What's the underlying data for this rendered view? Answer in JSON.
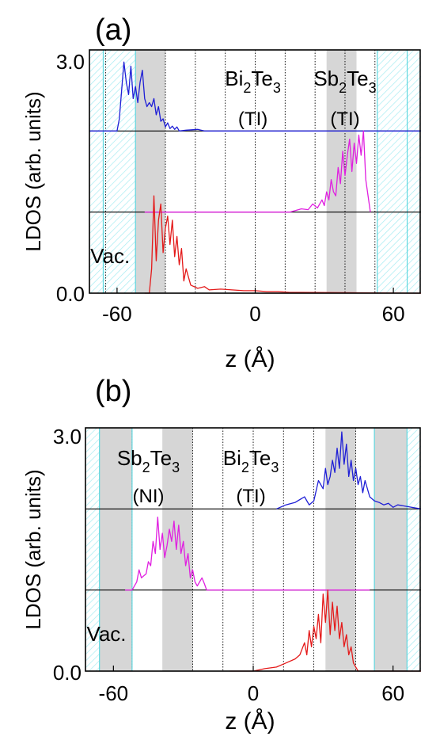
{
  "colors": {
    "top_curve": "#1f1fd6",
    "middle_curve": "#e020e0",
    "bottom_curve": "#e41a1a",
    "quintuple_layer_shade": "#d6d6d6",
    "vacuum_hatch": "#a6ecf2",
    "vacuum_boundary": "#5fd7df",
    "qlayer_divider": "#000000"
  },
  "chart_data": [
    {
      "type": "line",
      "panel_label": "(a)",
      "xlabel": "z (Å)",
      "ylabel": "LDOS (arb. units)",
      "xlim": [
        -72,
        72
      ],
      "ylim": [
        0,
        3.0
      ],
      "x_ticks": [
        -60,
        0,
        60
      ],
      "x_tick_labels": [
        "-60",
        "0",
        "60"
      ],
      "y_tick_labels": {
        "top": "3.0",
        "bottom": "0.0"
      },
      "offsets": [
        2.0,
        1.0,
        0.0
      ],
      "vacuum_label": "Vac.",
      "vacuum_regions": [
        [
          -72,
          -52
        ],
        [
          53,
          72
        ]
      ],
      "vacuum_lines": [
        -66,
        -52,
        53,
        66
      ],
      "shaded_regions": [
        [
          -52,
          -39
        ],
        [
          31,
          44
        ]
      ],
      "dotted_lines": [
        -65,
        -39,
        -26,
        -13,
        0,
        13,
        26,
        39,
        52
      ],
      "region_labels": [
        {
          "base": "Bi",
          "sub1": "2",
          "mid": "Te",
          "sub2": "3",
          "phase": "(TI)",
          "x": -1
        },
        {
          "base": "Sb",
          "sub1": "2",
          "mid": "Te",
          "sub2": "3",
          "phase": "(TI)",
          "x": 39
        }
      ],
      "series": [
        {
          "color_key": "top_curve",
          "baseline": 2.0,
          "x": [
            -72,
            -60,
            -59,
            -58,
            -57,
            -56,
            -55,
            -54,
            -53,
            -52,
            -51,
            -50,
            -49,
            -48,
            -47,
            -46,
            -45,
            -44,
            -43,
            -42,
            -41,
            -40,
            -39,
            -38,
            -37,
            -36,
            -35,
            -34,
            -33,
            -30,
            -25,
            -22,
            -20,
            72
          ],
          "y": [
            2.0,
            2.0,
            2.15,
            2.5,
            2.85,
            2.6,
            2.45,
            2.8,
            2.4,
            2.55,
            2.35,
            2.6,
            2.75,
            2.4,
            2.3,
            2.35,
            2.3,
            2.4,
            2.2,
            2.3,
            2.12,
            2.15,
            2.05,
            2.1,
            2.03,
            2.06,
            2.02,
            2.05,
            2.0,
            2.01,
            2.02,
            2.0,
            2.0,
            2.0
          ]
        },
        {
          "color_key": "middle_curve",
          "baseline": 1.0,
          "x": [
            -48,
            15,
            20,
            23,
            25,
            27,
            29,
            30,
            31,
            32,
            33,
            34,
            35,
            36,
            37,
            38,
            39,
            40,
            41,
            42,
            43,
            44,
            45,
            46,
            47,
            48,
            50
          ],
          "y": [
            1.0,
            1.0,
            1.04,
            1.03,
            1.1,
            1.05,
            1.15,
            1.08,
            1.25,
            1.15,
            1.4,
            1.25,
            1.2,
            1.55,
            1.35,
            1.75,
            1.45,
            1.7,
            1.9,
            1.5,
            1.85,
            1.6,
            1.95,
            1.7,
            2.0,
            1.4,
            1.0
          ]
        },
        {
          "color_key": "bottom_curve",
          "baseline": 0.0,
          "x": [
            -48,
            -46,
            -45,
            -44,
            -43,
            -42,
            -41,
            -40,
            -39,
            -38,
            -37,
            -36,
            -35,
            -34,
            -33,
            -32,
            -31,
            -30,
            -28,
            -25,
            -22,
            -20,
            -15,
            -10,
            -5,
            0,
            5,
            10,
            15,
            20,
            72
          ],
          "y": [
            0.0,
            0.0,
            0.3,
            1.2,
            0.4,
            0.9,
            1.1,
            0.5,
            0.8,
            0.95,
            0.6,
            0.9,
            0.45,
            0.7,
            0.35,
            0.55,
            0.15,
            0.3,
            0.1,
            0.06,
            0.08,
            0.04,
            0.05,
            0.04,
            0.03,
            0.03,
            0.02,
            0.02,
            0.01,
            0.01,
            0.0
          ]
        }
      ]
    },
    {
      "type": "line",
      "panel_label": "(b)",
      "xlabel": "z (Å)",
      "ylabel": "LDOS (arb. units)",
      "xlim": [
        -72,
        72
      ],
      "ylim": [
        0,
        3.0
      ],
      "x_ticks": [
        -60,
        0,
        60
      ],
      "x_tick_labels": [
        "-60",
        "0",
        "60"
      ],
      "y_tick_labels": {
        "top": "3.0",
        "bottom": "0.0"
      },
      "offsets": [
        2.0,
        1.0,
        0.0
      ],
      "vacuum_label": "Vac.",
      "vacuum_regions": [
        [
          -72,
          -52
        ],
        [
          52,
          72
        ]
      ],
      "vacuum_lines": [
        -66,
        -52,
        52,
        66
      ],
      "shaded_regions": [
        [
          -66,
          -52
        ],
        [
          -39,
          -26
        ],
        [
          31,
          44
        ],
        [
          52,
          66
        ]
      ],
      "dotted_lines": [
        -52,
        -26,
        -13,
        0,
        13,
        26,
        44
      ],
      "region_labels": [
        {
          "base": "Sb",
          "sub1": "2",
          "mid": "Te",
          "sub2": "3",
          "phase": "(NI)",
          "x": -45
        },
        {
          "base": "Bi",
          "sub1": "2",
          "mid": "Te",
          "sub2": "3",
          "phase": "(TI)",
          "x": -1
        }
      ],
      "series": [
        {
          "color_key": "top_curve",
          "baseline": 2.0,
          "x": [
            10,
            14,
            18,
            22,
            24,
            26,
            28,
            30,
            31,
            32,
            33,
            34,
            35,
            36,
            37,
            38,
            39,
            40,
            41,
            42,
            43,
            44,
            45,
            46,
            47,
            48,
            50,
            52,
            54,
            56,
            58,
            60,
            62,
            72
          ],
          "y": [
            2.0,
            2.05,
            2.08,
            2.15,
            2.05,
            2.1,
            2.35,
            2.25,
            2.5,
            2.3,
            2.4,
            2.6,
            2.45,
            2.75,
            2.5,
            2.95,
            2.55,
            2.8,
            2.4,
            2.6,
            2.35,
            2.5,
            2.3,
            2.4,
            2.2,
            2.35,
            2.15,
            2.1,
            2.08,
            2.05,
            2.07,
            2.02,
            2.05,
            2.0
          ]
        },
        {
          "color_key": "middle_curve",
          "baseline": 1.0,
          "x": [
            -55,
            -52,
            -50,
            -49,
            -48,
            -46,
            -45,
            -44,
            -43,
            -42,
            -41,
            -40,
            -39,
            -38,
            -37,
            -36,
            -35,
            -34,
            -33,
            -32,
            -31,
            -30,
            -29,
            -28,
            -27,
            -26,
            -25,
            -24,
            -22,
            -21,
            -20,
            50
          ],
          "y": [
            1.0,
            1.0,
            1.1,
            1.25,
            1.15,
            1.2,
            1.35,
            1.3,
            1.6,
            1.45,
            1.9,
            1.5,
            1.7,
            1.4,
            1.55,
            1.75,
            1.6,
            1.85,
            1.5,
            1.8,
            1.45,
            1.6,
            1.3,
            1.45,
            1.15,
            1.25,
            1.1,
            1.05,
            1.15,
            1.08,
            1.0,
            1.0
          ]
        },
        {
          "color_key": "bottom_curve",
          "baseline": 0.0,
          "x": [
            -10,
            0,
            5,
            10,
            14,
            18,
            20,
            22,
            23,
            24,
            25,
            26,
            27,
            28,
            29,
            30,
            31,
            32,
            33,
            34,
            35,
            36,
            37,
            38,
            39,
            40,
            41,
            42,
            43,
            44,
            45,
            72
          ],
          "y": [
            0.0,
            0.0,
            0.03,
            0.05,
            0.1,
            0.15,
            0.2,
            0.35,
            0.2,
            0.5,
            0.3,
            0.55,
            0.4,
            0.7,
            0.35,
            0.95,
            0.6,
            1.0,
            0.45,
            0.85,
            0.5,
            0.8,
            0.4,
            0.6,
            0.3,
            0.45,
            0.2,
            0.3,
            0.1,
            0.05,
            0.0,
            0.0
          ]
        }
      ]
    }
  ]
}
